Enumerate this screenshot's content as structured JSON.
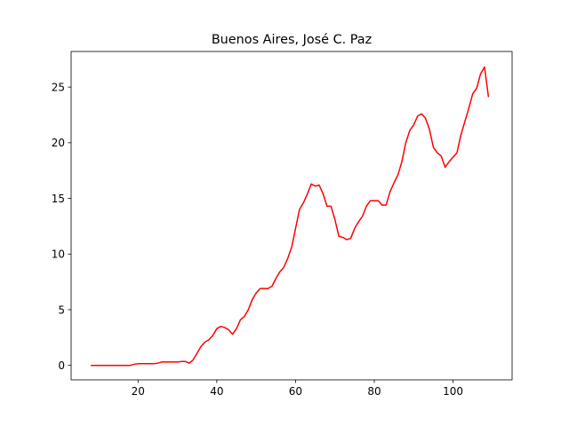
{
  "chart_data": {
    "type": "line",
    "title": "Buenos Aires, José C. Paz",
    "xlabel": "",
    "ylabel": "",
    "xlim": [
      3,
      115
    ],
    "ylim": [
      -1.3,
      28.2
    ],
    "xticks": [
      20,
      40,
      60,
      80,
      100
    ],
    "yticks": [
      0,
      5,
      10,
      15,
      20,
      25
    ],
    "grid": false,
    "series": [
      {
        "color": "#ff0000",
        "x": [
          8,
          9,
          10,
          11,
          12,
          13,
          14,
          15,
          16,
          17,
          18,
          19,
          20,
          21,
          22,
          23,
          24,
          25,
          26,
          27,
          28,
          29,
          30,
          31,
          32,
          33,
          34,
          35,
          36,
          37,
          38,
          39,
          40,
          41,
          42,
          43,
          44,
          45,
          46,
          47,
          48,
          49,
          50,
          51,
          52,
          53,
          54,
          55,
          56,
          57,
          58,
          59,
          60,
          61,
          62,
          63,
          64,
          65,
          66,
          67,
          68,
          69,
          70,
          71,
          72,
          73,
          74,
          75,
          76,
          77,
          78,
          79,
          80,
          81,
          82,
          83,
          84,
          85,
          86,
          87,
          88,
          89,
          90,
          91,
          92,
          93,
          94,
          95,
          96,
          97,
          98,
          99,
          100,
          101,
          102,
          103,
          104,
          105,
          106,
          107,
          108,
          109
        ],
        "y": [
          0,
          0,
          0,
          0,
          0,
          0,
          0,
          0,
          0,
          0,
          0,
          0.1,
          0.15,
          0.15,
          0.15,
          0.15,
          0.15,
          0.2,
          0.3,
          0.3,
          0.3,
          0.3,
          0.3,
          0.35,
          0.35,
          0.2,
          0.5,
          1.1,
          1.7,
          2.1,
          2.3,
          2.7,
          3.3,
          3.5,
          3.4,
          3.2,
          2.8,
          3.3,
          4.1,
          4.4,
          5.0,
          5.9,
          6.5,
          6.9,
          6.9,
          6.9,
          7.1,
          7.8,
          8.4,
          8.8,
          9.6,
          10.6,
          12.3,
          14.0,
          14.6,
          15.4,
          16.3,
          16.1,
          16.2,
          15.4,
          14.3,
          14.3,
          13.1,
          11.6,
          11.5,
          11.3,
          11.4,
          12.3,
          12.9,
          13.4,
          14.3,
          14.8,
          14.8,
          14.8,
          14.4,
          14.4,
          15.6,
          16.4,
          17.1,
          18.3,
          20.0,
          21.1,
          21.6,
          22.4,
          22.6,
          22.2,
          21.2,
          19.6,
          19.1,
          18.8,
          17.8,
          18.3,
          18.7,
          19.1,
          20.7,
          21.9,
          23.1,
          24.4,
          24.9,
          26.2,
          26.8,
          24.1
        ]
      }
    ]
  }
}
